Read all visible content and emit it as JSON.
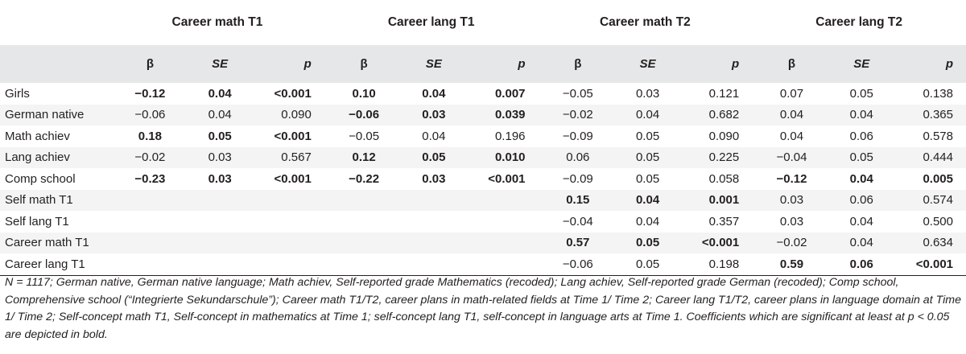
{
  "groups": [
    "Career math T1",
    "Career lang T1",
    "Career math T2",
    "Career lang T2"
  ],
  "subheaders": {
    "beta": "β",
    "se": "SE",
    "p": "p"
  },
  "rows": [
    {
      "label": "Girls",
      "cells": [
        {
          "v": "−0.12",
          "b": true
        },
        {
          "v": "0.04",
          "b": true
        },
        {
          "v": "<0.001",
          "b": true
        },
        {
          "v": "0.10",
          "b": true
        },
        {
          "v": "0.04",
          "b": true
        },
        {
          "v": "0.007",
          "b": true
        },
        {
          "v": "−0.05",
          "b": false
        },
        {
          "v": "0.03",
          "b": false
        },
        {
          "v": "0.121",
          "b": false
        },
        {
          "v": "0.07",
          "b": false
        },
        {
          "v": "0.05",
          "b": false
        },
        {
          "v": "0.138",
          "b": false
        }
      ]
    },
    {
      "label": "German native",
      "cells": [
        {
          "v": "−0.06",
          "b": false
        },
        {
          "v": "0.04",
          "b": false
        },
        {
          "v": "0.090",
          "b": false
        },
        {
          "v": "−0.06",
          "b": true
        },
        {
          "v": "0.03",
          "b": true
        },
        {
          "v": "0.039",
          "b": true
        },
        {
          "v": "−0.02",
          "b": false
        },
        {
          "v": "0.04",
          "b": false
        },
        {
          "v": "0.682",
          "b": false
        },
        {
          "v": "0.04",
          "b": false
        },
        {
          "v": "0.04",
          "b": false
        },
        {
          "v": "0.365",
          "b": false
        }
      ]
    },
    {
      "label": "Math achiev",
      "cells": [
        {
          "v": "0.18",
          "b": true
        },
        {
          "v": "0.05",
          "b": true
        },
        {
          "v": "<0.001",
          "b": true
        },
        {
          "v": "−0.05",
          "b": false
        },
        {
          "v": "0.04",
          "b": false
        },
        {
          "v": "0.196",
          "b": false
        },
        {
          "v": "−0.09",
          "b": false
        },
        {
          "v": "0.05",
          "b": false
        },
        {
          "v": "0.090",
          "b": false
        },
        {
          "v": "0.04",
          "b": false
        },
        {
          "v": "0.06",
          "b": false
        },
        {
          "v": "0.578",
          "b": false
        }
      ]
    },
    {
      "label": "Lang achiev",
      "cells": [
        {
          "v": "−0.02",
          "b": false
        },
        {
          "v": "0.03",
          "b": false
        },
        {
          "v": "0.567",
          "b": false
        },
        {
          "v": "0.12",
          "b": true
        },
        {
          "v": "0.05",
          "b": true
        },
        {
          "v": "0.010",
          "b": true
        },
        {
          "v": "0.06",
          "b": false
        },
        {
          "v": "0.05",
          "b": false
        },
        {
          "v": "0.225",
          "b": false
        },
        {
          "v": "−0.04",
          "b": false
        },
        {
          "v": "0.05",
          "b": false
        },
        {
          "v": "0.444",
          "b": false
        }
      ]
    },
    {
      "label": "Comp school",
      "cells": [
        {
          "v": "−0.23",
          "b": true
        },
        {
          "v": "0.03",
          "b": true
        },
        {
          "v": "<0.001",
          "b": true
        },
        {
          "v": "−0.22",
          "b": true
        },
        {
          "v": "0.03",
          "b": true
        },
        {
          "v": "<0.001",
          "b": true
        },
        {
          "v": "−0.09",
          "b": false
        },
        {
          "v": "0.05",
          "b": false
        },
        {
          "v": "0.058",
          "b": false
        },
        {
          "v": "−0.12",
          "b": true
        },
        {
          "v": "0.04",
          "b": true
        },
        {
          "v": "0.005",
          "b": true
        }
      ]
    },
    {
      "label": "Self math T1",
      "cells": [
        {
          "v": "",
          "b": false
        },
        {
          "v": "",
          "b": false
        },
        {
          "v": "",
          "b": false
        },
        {
          "v": "",
          "b": false
        },
        {
          "v": "",
          "b": false
        },
        {
          "v": "",
          "b": false
        },
        {
          "v": "0.15",
          "b": true
        },
        {
          "v": "0.04",
          "b": true
        },
        {
          "v": "0.001",
          "b": true
        },
        {
          "v": "0.03",
          "b": false
        },
        {
          "v": "0.06",
          "b": false
        },
        {
          "v": "0.574",
          "b": false
        }
      ]
    },
    {
      "label": "Self lang T1",
      "cells": [
        {
          "v": "",
          "b": false
        },
        {
          "v": "",
          "b": false
        },
        {
          "v": "",
          "b": false
        },
        {
          "v": "",
          "b": false
        },
        {
          "v": "",
          "b": false
        },
        {
          "v": "",
          "b": false
        },
        {
          "v": "−0.04",
          "b": false
        },
        {
          "v": "0.04",
          "b": false
        },
        {
          "v": "0.357",
          "b": false
        },
        {
          "v": "0.03",
          "b": false
        },
        {
          "v": "0.04",
          "b": false
        },
        {
          "v": "0.500",
          "b": false
        }
      ]
    },
    {
      "label": "Career math T1",
      "cells": [
        {
          "v": "",
          "b": false
        },
        {
          "v": "",
          "b": false
        },
        {
          "v": "",
          "b": false
        },
        {
          "v": "",
          "b": false
        },
        {
          "v": "",
          "b": false
        },
        {
          "v": "",
          "b": false
        },
        {
          "v": "0.57",
          "b": true
        },
        {
          "v": "0.05",
          "b": true
        },
        {
          "v": "<0.001",
          "b": true
        },
        {
          "v": "−0.02",
          "b": false
        },
        {
          "v": "0.04",
          "b": false
        },
        {
          "v": "0.634",
          "b": false
        }
      ]
    },
    {
      "label": "Career lang T1",
      "cells": [
        {
          "v": "",
          "b": false
        },
        {
          "v": "",
          "b": false
        },
        {
          "v": "",
          "b": false
        },
        {
          "v": "",
          "b": false
        },
        {
          "v": "",
          "b": false
        },
        {
          "v": "",
          "b": false
        },
        {
          "v": "−0.06",
          "b": false
        },
        {
          "v": "0.05",
          "b": false
        },
        {
          "v": "0.198",
          "b": false
        },
        {
          "v": "0.59",
          "b": true
        },
        {
          "v": "0.06",
          "b": true
        },
        {
          "v": "<0.001",
          "b": true
        }
      ]
    }
  ],
  "note": "N = 1117; German native, German native language; Math achiev, Self-reported grade Mathematics (recoded); Lang achiev, Self-reported grade German (recoded); Comp school, Comprehensive school (“Integrierte Sekundarschule”); Career math T1/T2, career plans in math-related fields at Time 1/ Time 2; Career lang T1/T2, career plans in language domain at Time 1/ Time 2; Self-concept math T1, Self-concept in mathematics at Time 1; self-concept lang T1, self-concept in language arts at Time 1. Coefficients which are significant at least at p < 0.05 are depicted in bold."
}
